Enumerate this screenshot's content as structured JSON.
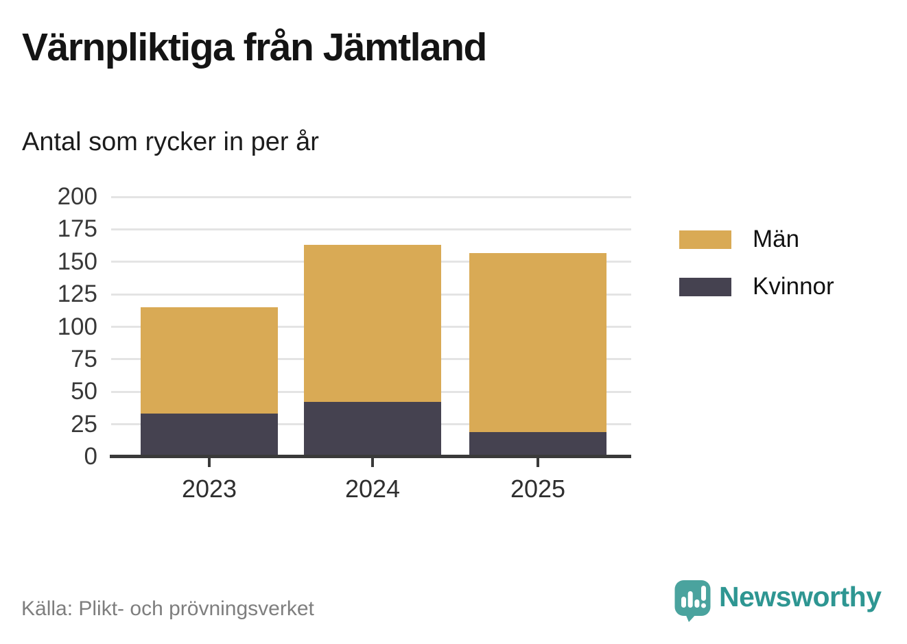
{
  "header": {
    "title": "Värnpliktiga från Jämtland",
    "subtitle": "Antal som rycker in per år"
  },
  "footer": {
    "source": "Källa: Plikt- och prövningsverket",
    "brand": "Newsworthy"
  },
  "colors": {
    "men": "#d9aa55",
    "women": "#454250",
    "grid": "#e4e4e4",
    "axis": "#3a3a3a",
    "brand_teal": "#4aa39e",
    "brand_text": "#2e9692",
    "source_gray": "#7e7e7e"
  },
  "chart_data": {
    "type": "bar",
    "stacked": true,
    "title": "Värnpliktiga från Jämtland",
    "subtitle": "Antal som rycker in per år",
    "categories": [
      "2023",
      "2024",
      "2025"
    ],
    "series": [
      {
        "name": "Kvinnor",
        "color": "#454250",
        "values": [
          33,
          42,
          19
        ]
      },
      {
        "name": "Män",
        "color": "#d9aa55",
        "values": [
          82,
          121,
          138
        ]
      }
    ],
    "totals": [
      115,
      163,
      157
    ],
    "xlabel": "",
    "ylabel": "",
    "ylim": [
      0,
      200
    ],
    "yticks": [
      0,
      25,
      50,
      75,
      100,
      125,
      150,
      175,
      200
    ],
    "grid": true,
    "legend_position": "right",
    "legend_order": [
      "Män",
      "Kvinnor"
    ]
  }
}
